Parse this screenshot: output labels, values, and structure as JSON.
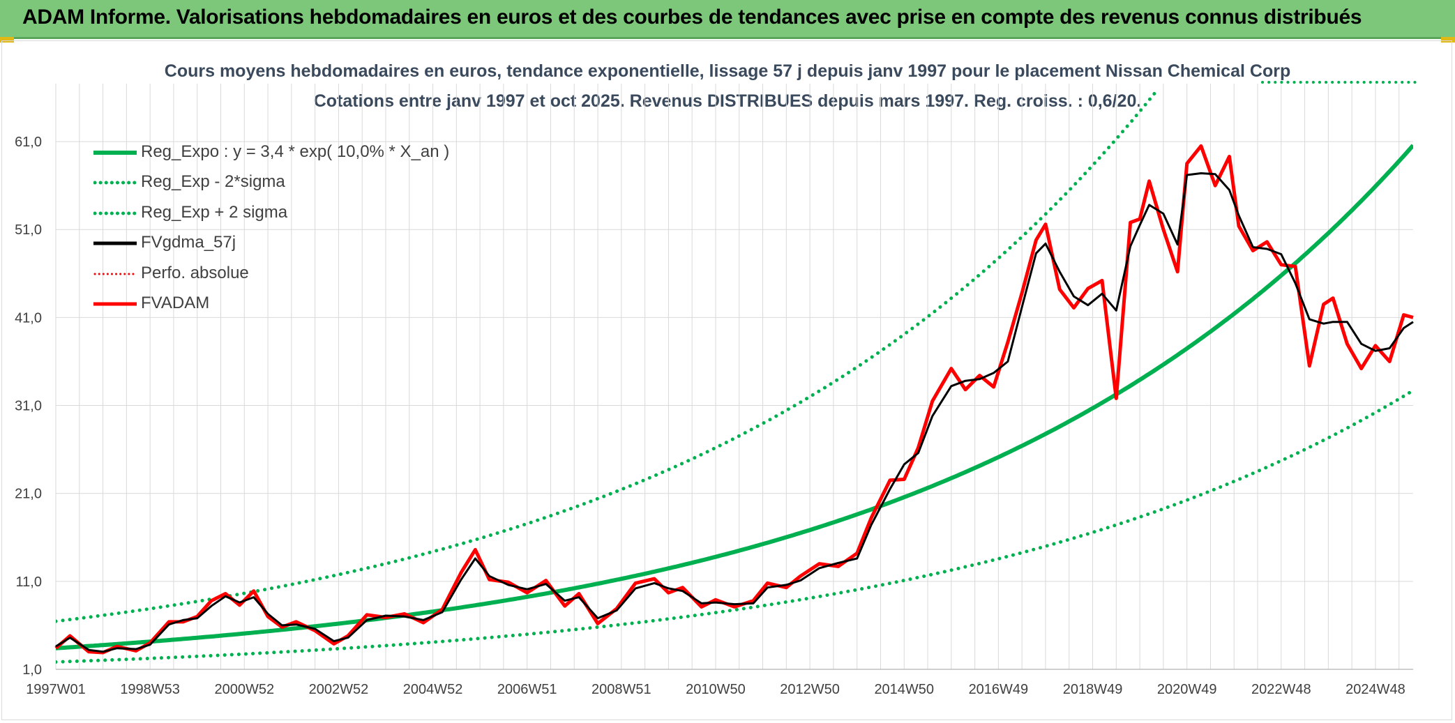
{
  "banner": {
    "title": "ADAM Informe. Valorisations hebdomadaires en euros et des courbes de tendances avec prise en compte des revenus connus distribués"
  },
  "chart": {
    "title_line1": "Cours moyens hebdomadaires en euros, tendance exponentielle, lissage 57 j depuis janv 1997 pour le placement Nissan Chemical Corp",
    "title_line2": "Cotations entre janv 1997 et oct 2025. Revenus DISTRIBUES depuis mars 1997. Reg. croiss. : 0,6/20."
  },
  "colors": {
    "banner": "#7dc77a",
    "green": "#00b050",
    "red": "#ff0000",
    "black": "#000000",
    "accent": "#e2b814"
  },
  "chart_data": {
    "type": "line",
    "title": "Cours moyens hebdomadaires en euros, tendance exponentielle, lissage 57 j depuis janv 1997 pour le placement Nissan Chemical Corp",
    "subtitle": "Cotations entre janv 1997 et oct 2025. Revenus DISTRIBUES depuis mars 1997. Reg. croiss. : 0,6/20.",
    "x_range": [
      1997.0,
      2025.8
    ],
    "ylim": [
      1,
      66
    ],
    "yticks": [
      "1,0",
      "11,0",
      "21,0",
      "31,0",
      "41,0",
      "51,0",
      "61,0"
    ],
    "ytick_values": [
      1,
      11,
      21,
      31,
      41,
      51,
      61
    ],
    "xtick_labels": [
      "1997W01",
      "1998W53",
      "2000W52",
      "2002W52",
      "2004W52",
      "2006W51",
      "2008W51",
      "2010W50",
      "2012W50",
      "2014W50",
      "2016W49",
      "2018W49",
      "2020W49",
      "2022W48",
      "2024W48"
    ],
    "xtick_years": [
      1997.0,
      1999.0,
      2001.0,
      2003.0,
      2005.0,
      2007.0,
      2009.0,
      2011.0,
      2013.0,
      2015.0,
      2017.0,
      2019.0,
      2021.0,
      2023.0,
      2025.0
    ],
    "grid": true,
    "legend_position": "top-left",
    "regression": {
      "a": 3.4,
      "rate": 0.1,
      "upper_factor": 1.9,
      "lower_factor": 0.54
    },
    "series": [
      {
        "name": "Reg_Expo : y = 3,4 * exp( 10,0% *  X_an )",
        "style": "solid",
        "color": "#00b050"
      },
      {
        "name": "Reg_Exp - 2*sigma",
        "style": "dotted",
        "color": "#00b050"
      },
      {
        "name": "Reg_Exp + 2 sigma",
        "style": "dotted",
        "color": "#00b050"
      },
      {
        "name": "FVgdma_57j",
        "style": "solid",
        "color": "#000000",
        "x": [
          1997.0,
          1997.3,
          1997.7,
          1998.0,
          1998.3,
          1998.7,
          1999.0,
          1999.4,
          1999.7,
          2000.0,
          2000.3,
          2000.6,
          2000.9,
          2001.2,
          2001.5,
          2001.8,
          2002.1,
          2002.5,
          2002.9,
          2003.2,
          2003.6,
          2004.0,
          2004.4,
          2004.8,
          2005.2,
          2005.6,
          2005.9,
          2006.2,
          2006.6,
          2007.0,
          2007.4,
          2007.8,
          2008.1,
          2008.5,
          2008.9,
          2009.3,
          2009.7,
          2010.0,
          2010.3,
          2010.7,
          2011.0,
          2011.4,
          2011.8,
          2012.1,
          2012.5,
          2012.8,
          2013.2,
          2013.6,
          2014.0,
          2014.3,
          2014.7,
          2015.0,
          2015.3,
          2015.6,
          2016.0,
          2016.3,
          2016.6,
          2016.9,
          2017.2,
          2017.5,
          2017.8,
          2018.0,
          2018.3,
          2018.6,
          2018.9,
          2019.2,
          2019.5,
          2019.8,
          2020.0,
          2020.2,
          2020.5,
          2020.8,
          2021.0,
          2021.3,
          2021.6,
          2021.9,
          2022.1,
          2022.4,
          2022.7,
          2023.0,
          2023.3,
          2023.6,
          2023.9,
          2024.1,
          2024.4,
          2024.7,
          2025.0,
          2025.3,
          2025.6,
          2025.8
        ],
        "y": [
          3.6,
          4.6,
          3.2,
          3.0,
          3.4,
          3.3,
          3.8,
          6.1,
          6.6,
          6.8,
          8.2,
          9.3,
          8.6,
          9.2,
          7.3,
          6.0,
          6.1,
          5.6,
          4.2,
          4.6,
          6.6,
          7.1,
          7.0,
          6.6,
          7.5,
          11.2,
          13.6,
          11.6,
          10.6,
          10.1,
          10.7,
          8.8,
          9.2,
          6.8,
          7.7,
          10.2,
          10.8,
          10.2,
          9.9,
          8.5,
          8.6,
          8.4,
          8.5,
          10.3,
          10.6,
          11.1,
          12.5,
          13.1,
          13.6,
          17.4,
          21.5,
          24.3,
          25.6,
          29.8,
          33.2,
          33.8,
          34.0,
          34.7,
          36.0,
          42.2,
          48.3,
          49.4,
          46.2,
          43.4,
          42.4,
          43.7,
          41.8,
          49.1,
          51.5,
          53.8,
          52.8,
          49.3,
          57.2,
          57.4,
          57.3,
          55.5,
          52.6,
          49.0,
          48.8,
          48.2,
          44.9,
          40.8,
          40.3,
          40.5,
          40.5,
          38.0,
          37.2,
          37.5,
          39.8,
          40.5
        ]
      },
      {
        "name": "Perfo. absolue",
        "style": "dotted",
        "color": "#ff0000"
      },
      {
        "name": "FVADAM",
        "style": "solid",
        "color": "#ff0000",
        "x": [
          1997.0,
          1997.3,
          1997.7,
          1998.0,
          1998.3,
          1998.7,
          1999.0,
          1999.4,
          1999.7,
          2000.0,
          2000.3,
          2000.6,
          2000.9,
          2001.2,
          2001.5,
          2001.8,
          2002.1,
          2002.5,
          2002.9,
          2003.2,
          2003.6,
          2004.0,
          2004.4,
          2004.8,
          2005.2,
          2005.6,
          2005.9,
          2006.2,
          2006.6,
          2007.0,
          2007.4,
          2007.8,
          2008.1,
          2008.5,
          2008.9,
          2009.3,
          2009.7,
          2010.0,
          2010.3,
          2010.7,
          2011.0,
          2011.4,
          2011.8,
          2012.1,
          2012.5,
          2012.8,
          2013.2,
          2013.6,
          2014.0,
          2014.3,
          2014.7,
          2015.0,
          2015.3,
          2015.6,
          2016.0,
          2016.3,
          2016.6,
          2016.9,
          2017.2,
          2017.5,
          2017.8,
          2018.0,
          2018.3,
          2018.6,
          2018.9,
          2019.2,
          2019.5,
          2019.8,
          2020.0,
          2020.2,
          2020.5,
          2020.8,
          2021.0,
          2021.3,
          2021.6,
          2021.9,
          2022.1,
          2022.4,
          2022.7,
          2023.0,
          2023.3,
          2023.6,
          2023.9,
          2024.1,
          2024.4,
          2024.7,
          2025.0,
          2025.3,
          2025.6,
          2025.8
        ],
        "y": [
          3.4,
          4.8,
          3.0,
          2.9,
          3.6,
          3.1,
          4.0,
          6.4,
          6.4,
          7.0,
          8.8,
          9.6,
          8.3,
          9.9,
          7.0,
          5.8,
          6.4,
          5.4,
          3.9,
          4.8,
          7.2,
          6.9,
          7.3,
          6.3,
          7.8,
          12.0,
          14.6,
          11.2,
          10.9,
          9.7,
          11.1,
          8.2,
          9.6,
          6.2,
          7.9,
          10.8,
          11.3,
          9.7,
          10.3,
          8.1,
          8.9,
          8.1,
          8.8,
          10.8,
          10.3,
          11.6,
          13.0,
          12.7,
          14.2,
          18.2,
          22.5,
          22.6,
          26.2,
          31.5,
          35.2,
          32.8,
          34.4,
          33.1,
          38.2,
          43.8,
          49.8,
          51.6,
          44.2,
          42.1,
          44.3,
          45.2,
          31.8,
          51.8,
          52.2,
          56.5,
          51.0,
          46.2,
          58.5,
          60.5,
          56.0,
          59.3,
          51.4,
          48.6,
          49.6,
          47.0,
          46.8,
          35.5,
          42.5,
          43.2,
          38.0,
          35.2,
          37.8,
          36.0,
          41.3,
          41.0
        ]
      }
    ]
  }
}
